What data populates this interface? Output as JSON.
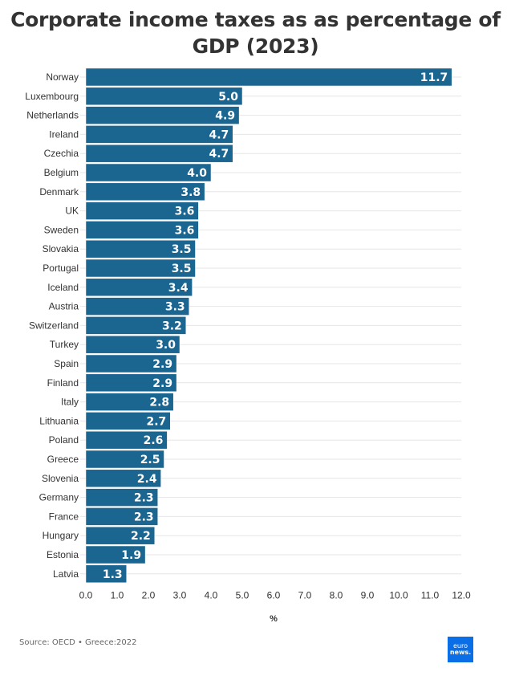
{
  "chart_data": {
    "type": "bar",
    "orientation": "horizontal",
    "title": "Corporate income taxes as as percentage of GDP (2023)",
    "title_lines": [
      "Corporate income taxes as as percentage of",
      "GDP (2023)"
    ],
    "xlabel": "%",
    "ylabel": "",
    "xlim": [
      0,
      12
    ],
    "xticks": [
      "0.0",
      "1.0",
      "2.0",
      "3.0",
      "4.0",
      "5.0",
      "6.0",
      "7.0",
      "8.0",
      "9.0",
      "10.0",
      "11.0",
      "12.0"
    ],
    "grid": true,
    "bar_color": "#1b6591",
    "categories": [
      "Norway",
      "Luxembourg",
      "Netherlands",
      "Ireland",
      "Czechia",
      "Belgium",
      "Denmark",
      "UK",
      "Sweden",
      "Slovakia",
      "Portugal",
      "Iceland",
      "Austria",
      "Switzerland",
      "Turkey",
      "Spain",
      "Finland",
      "Italy",
      "Lithuania",
      "Poland",
      "Greece",
      "Slovenia",
      "Germany",
      "France",
      "Hungary",
      "Estonia",
      "Latvia"
    ],
    "values": [
      11.7,
      5.0,
      4.9,
      4.7,
      4.7,
      4.0,
      3.8,
      3.6,
      3.6,
      3.5,
      3.5,
      3.4,
      3.3,
      3.2,
      3.0,
      2.9,
      2.9,
      2.8,
      2.7,
      2.6,
      2.5,
      2.4,
      2.3,
      2.3,
      2.2,
      1.9,
      1.3
    ],
    "data_labels": [
      "11.7",
      "5.0",
      "4.9",
      "4.7",
      "4.7",
      "4.0",
      "3.8",
      "3.6",
      "3.6",
      "3.5",
      "3.5",
      "3.4",
      "3.3",
      "3.2",
      "3.0",
      "2.9",
      "2.9",
      "2.8",
      "2.7",
      "2.6",
      "2.5",
      "2.4",
      "2.3",
      "2.3",
      "2.2",
      "1.9",
      "1.3"
    ]
  },
  "footer": {
    "source": "Source: OECD • Greece:2022",
    "logo_line1": "euro",
    "logo_line2": "news."
  }
}
